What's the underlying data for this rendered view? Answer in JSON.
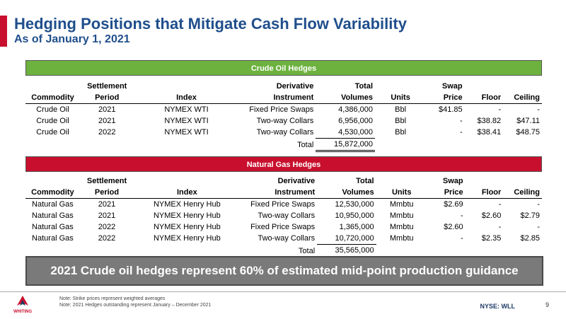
{
  "title": "Hedging Positions that Mitigate Cash Flow Variability",
  "subtitle": "As of January 1, 2021",
  "columns": {
    "top": [
      "",
      "Settlement",
      "",
      "Derivative",
      "Total",
      "",
      "Swap",
      "",
      ""
    ],
    "bottom": [
      "Commodity",
      "Period",
      "Index",
      "Instrument",
      "Volumes",
      "Units",
      "Price",
      "Floor",
      "Ceiling"
    ]
  },
  "crude": {
    "header": "Crude Oil Hedges",
    "rows": [
      [
        "Crude Oil",
        "2021",
        "NYMEX WTI",
        "Fixed Price Swaps",
        "4,386,000",
        "Bbl",
        "$41.85",
        "-",
        "-"
      ],
      [
        "Crude Oil",
        "2021",
        "NYMEX WTI",
        "Two-way Collars",
        "6,956,000",
        "Bbl",
        "-",
        "$38.82",
        "$47.11"
      ],
      [
        "Crude Oil",
        "2022",
        "NYMEX WTI",
        "Two-way Collars",
        "4,530,000",
        "Bbl",
        "-",
        "$38.41",
        "$48.75"
      ]
    ],
    "total_label": "Total",
    "total_value": "15,872,000"
  },
  "gas": {
    "header": "Natural Gas Hedges",
    "rows": [
      [
        "Natural Gas",
        "2021",
        "NYMEX Henry Hub",
        "Fixed Price Swaps",
        "12,530,000",
        "Mmbtu",
        "$2.69",
        "-",
        "-"
      ],
      [
        "Natural Gas",
        "2021",
        "NYMEX Henry Hub",
        "Two-way Collars",
        "10,950,000",
        "Mmbtu",
        "-",
        "$2.60",
        "$2.79"
      ],
      [
        "Natural Gas",
        "2022",
        "NYMEX Henry Hub",
        "Fixed Price Swaps",
        "1,365,000",
        "Mmbtu",
        "$2.60",
        "-",
        "-"
      ],
      [
        "Natural Gas",
        "2022",
        "NYMEX Henry Hub",
        "Two-way Collars",
        "10,720,000",
        "Mmbtu",
        "-",
        "$2.35",
        "$2.85"
      ]
    ],
    "total_label": "Total",
    "total_value": "35,565,000"
  },
  "banner": "2021 Crude oil hedges represent 60% of estimated mid-point  production guidance",
  "footer": {
    "logo_text": "WHITING",
    "note1": "Note: Strike prices represent weighted averages",
    "note2": "Note: 2021 Hedges outstanding represent January – December 2021",
    "ticker": "NYSE: WLL",
    "page": "9"
  },
  "colors": {
    "title": "#1f4e8c",
    "accent_red": "#c8102e",
    "crude_header": "#6db23f",
    "gas_header": "#c8102e",
    "banner": "#7a7a7a"
  }
}
